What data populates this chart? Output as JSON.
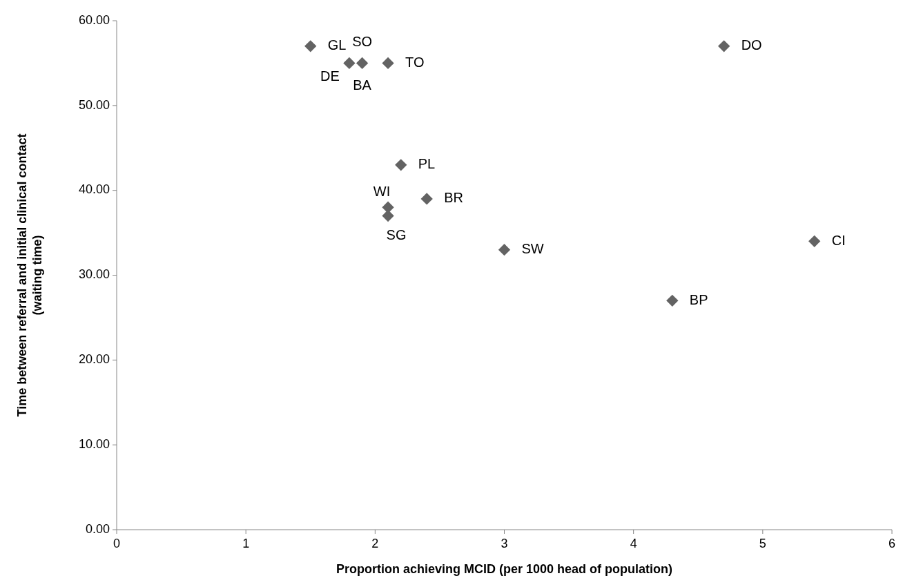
{
  "chart_data": {
    "type": "scatter",
    "xlabel": "Proportion achieving MCID (per 1000 head of population)",
    "ylabel": "Time between referral and initial clinical contact (waiting time)",
    "series": [
      {
        "color": "#636363",
        "x": [
          1.5,
          1.8,
          1.9,
          2.1,
          2.2,
          2.1,
          2.1,
          2.4,
          3.0,
          4.7,
          5.4,
          4.3
        ],
        "values": [
          57,
          55,
          55,
          55,
          43,
          38,
          37,
          39,
          33,
          57,
          34,
          27
        ]
      }
    ],
    "marker": "diamond",
    "grid": false,
    "xlim": [
      0,
      6
    ],
    "xticks": [
      0,
      1,
      2,
      3,
      4,
      5,
      6
    ],
    "ylim": [
      0,
      60
    ],
    "yticks": [
      {
        "value": 0,
        "label": "0.00"
      },
      {
        "value": 10,
        "label": "10.00"
      },
      {
        "value": 20,
        "label": "20.00"
      },
      {
        "value": 30,
        "label": "30.00"
      },
      {
        "value": 40,
        "label": "40.00"
      },
      {
        "value": 50,
        "label": "50.00"
      },
      {
        "value": 60,
        "label": "60.00"
      }
    ],
    "annotations": [
      {
        "text": "GL",
        "x": 1.5,
        "y": 57
      },
      {
        "text": "DE",
        "x": 1.8,
        "y": 55
      },
      {
        "text": "BA",
        "x": 1.9,
        "y": 55
      },
      {
        "text": "SO",
        "x": 1.9,
        "y": 55
      },
      {
        "text": "TO",
        "x": 2.1,
        "y": 55
      },
      {
        "text": "PL",
        "x": 2.2,
        "y": 43
      },
      {
        "text": "WI",
        "x": 2.1,
        "y": 38
      },
      {
        "text": "SG",
        "x": 2.1,
        "y": 37
      },
      {
        "text": "BR",
        "x": 2.4,
        "y": 39
      },
      {
        "text": "SW",
        "x": 3.0,
        "y": 33
      },
      {
        "text": "DO",
        "x": 4.7,
        "y": 57
      },
      {
        "text": "CI",
        "x": 5.4,
        "y": 34
      },
      {
        "text": "BP",
        "x": 4.3,
        "y": 27
      }
    ]
  }
}
